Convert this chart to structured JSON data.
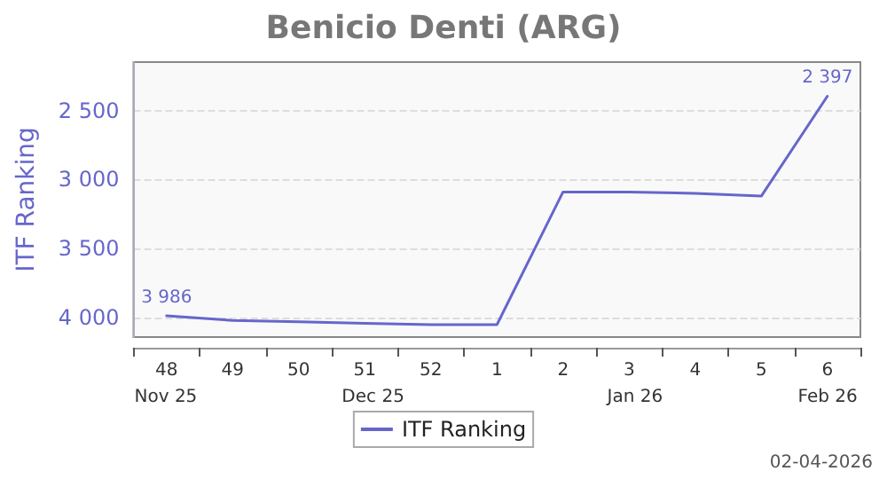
{
  "chart_data": {
    "type": "line",
    "title": "Benicio Denti (ARG)",
    "ylabel": "ITF Ranking",
    "categories": [
      "48",
      "49",
      "50",
      "51",
      "52",
      "1",
      "2",
      "3",
      "4",
      "5",
      "6"
    ],
    "series": [
      {
        "name": "ITF Ranking",
        "color": "#6666cc",
        "values": [
          3986,
          4020,
          4030,
          4040,
          4050,
          4050,
          3090,
          3090,
          3100,
          3120,
          2397
        ],
        "value_labels": [
          "3 986",
          null,
          null,
          null,
          null,
          null,
          null,
          null,
          null,
          null,
          "2 397"
        ]
      }
    ],
    "ylim": [
      4140,
      2150
    ],
    "yticks": [
      {
        "value": 2500,
        "label": "2 500"
      },
      {
        "value": 3000,
        "label": "3 000"
      },
      {
        "value": 3500,
        "label": "3 500"
      },
      {
        "value": 4000,
        "label": "4 000"
      }
    ],
    "grid": "y",
    "legend": "bottom",
    "marker": "none",
    "line_style": "solid",
    "annotations": [
      "Nov 25",
      "Dec 25",
      "Jan 26",
      "Feb 26",
      "02-04-2026"
    ]
  }
}
